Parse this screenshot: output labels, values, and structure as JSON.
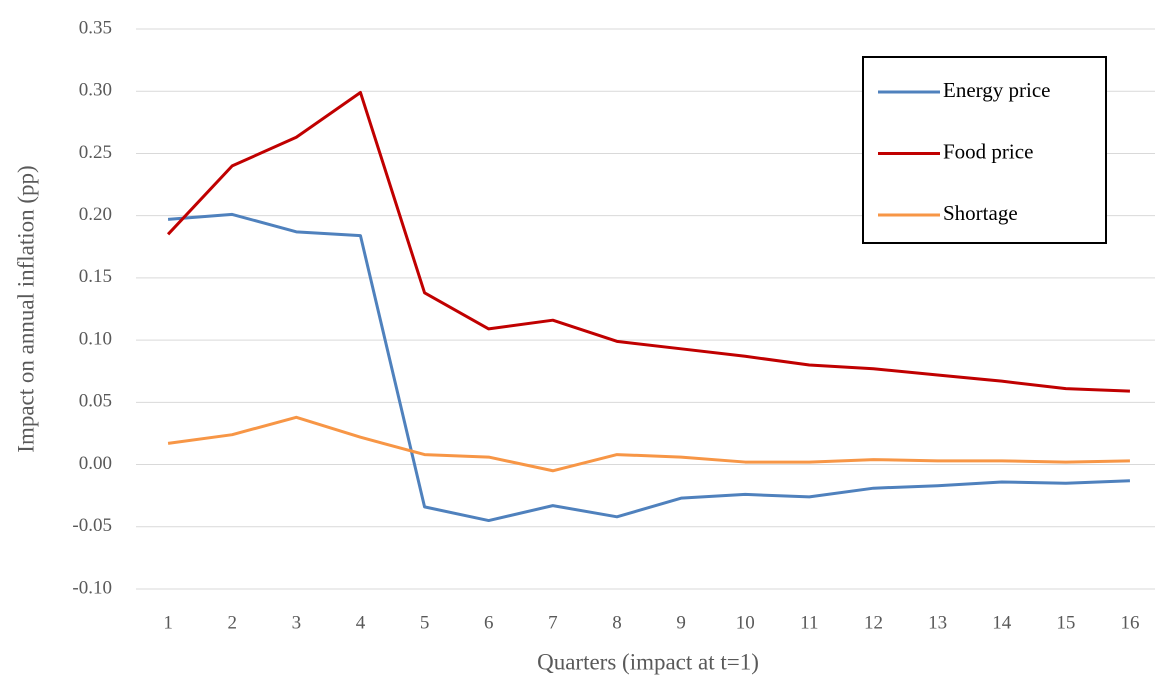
{
  "chart_data": {
    "type": "line",
    "y_label": "Impact on annual inflation (pp)",
    "x_label": "Quarters (impact at t=1)",
    "categories": [
      "1",
      "2",
      "3",
      "4",
      "5",
      "6",
      "7",
      "8",
      "9",
      "10",
      "11",
      "12",
      "13",
      "14",
      "15",
      "16"
    ],
    "series": [
      {
        "name": "Energy price",
        "color": "#4f81bd",
        "values": [
          0.197,
          0.201,
          0.187,
          0.184,
          -0.034,
          -0.045,
          -0.033,
          -0.042,
          -0.027,
          -0.024,
          -0.026,
          -0.019,
          -0.017,
          -0.014,
          -0.015,
          -0.013
        ]
      },
      {
        "name": "Food price",
        "color": "#c00000",
        "values": [
          0.185,
          0.24,
          0.263,
          0.299,
          0.138,
          0.109,
          0.116,
          0.099,
          0.093,
          0.087,
          0.08,
          0.077,
          0.072,
          0.067,
          0.061,
          0.059
        ]
      },
      {
        "name": "Shortage",
        "color": "#f79646",
        "values": [
          0.017,
          0.024,
          0.038,
          0.022,
          0.008,
          0.006,
          -0.005,
          0.008,
          0.006,
          0.002,
          0.002,
          0.004,
          0.003,
          0.003,
          0.002,
          0.003
        ]
      }
    ],
    "ylim": [
      -0.1,
      0.35
    ],
    "yticks": [
      0.35,
      {
        "value": 0.3,
        "label": "0.30"
      },
      0.25,
      {
        "value": 0.2,
        "label": "0.20"
      },
      0.15,
      {
        "value": 0.1,
        "label": "0.10"
      },
      0.05,
      {
        "value": 0,
        "label": "0.00"
      },
      -0.05,
      {
        "value": -0.1,
        "label": "-0.10"
      }
    ],
    "grid": true,
    "legend": "upper right"
  }
}
